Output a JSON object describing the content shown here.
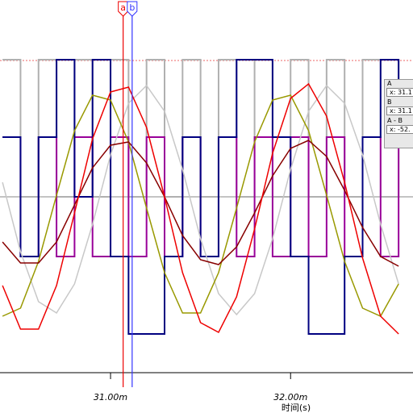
{
  "chart_data": {
    "type": "line",
    "x_label": "时间(s)",
    "x": [
      30.4,
      30.5,
      30.6,
      30.7,
      30.8,
      30.9,
      31.0,
      31.1,
      31.2,
      31.3,
      31.4,
      31.5,
      31.6,
      31.7,
      31.8,
      31.9,
      32.0,
      32.1,
      32.2,
      32.3,
      32.4,
      32.5,
      32.6
    ],
    "xlim": [
      30.386,
      32.68
    ],
    "ylim": [
      -1.09,
      1.22
    ],
    "xticks": [
      {
        "value": 31,
        "label": "31.00m"
      },
      {
        "value": 32,
        "label": "32.00m"
      }
    ],
    "series": [
      {
        "color": "#b0b0b0",
        "step": true,
        "values": [
          0.85,
          0,
          0.85,
          0,
          0.85,
          0,
          0.85,
          0,
          0.85,
          0,
          0.85,
          0,
          0.85,
          0,
          0.85,
          0,
          0.85,
          0,
          0.85,
          0,
          0.85,
          0,
          0.85
        ]
      },
      {
        "color": "#990099",
        "step": true,
        "values": [
          0.37,
          -0.37,
          0.37,
          -0.37,
          0.37,
          -0.37,
          0.37,
          -0.37,
          0.37,
          -0.37,
          0.37,
          -0.37,
          0.37,
          -0.37,
          0.37,
          -0.37,
          0.37,
          -0.37,
          0.37,
          -0.37,
          0.37,
          -0.37,
          0.37
        ]
      },
      {
        "color": "#000080",
        "step": true,
        "values": [
          0.37,
          -0.37,
          0.37,
          0.85,
          0,
          0.85,
          -0.37,
          -0.85,
          -0.85,
          -0.37,
          0.37,
          -0.37,
          0.37,
          0.85,
          0.85,
          0.37,
          -0.37,
          -0.85,
          -0.85,
          -0.37,
          0.37,
          0.85,
          0.37
        ]
      },
      {
        "color": "#c8c8c8",
        "values": [
          0.09,
          -0.34,
          -0.65,
          -0.72,
          -0.54,
          -0.17,
          0.26,
          0.58,
          0.69,
          0.53,
          0.17,
          -0.26,
          -0.6,
          -0.73,
          -0.6,
          -0.26,
          0.17,
          0.53,
          0.69,
          0.58,
          0.26,
          -0.17,
          -0.54
        ]
      },
      {
        "color": "#999900",
        "values": [
          -0.74,
          -0.69,
          -0.4,
          0.01,
          0.41,
          0.63,
          0.6,
          0.34,
          -0.07,
          -0.47,
          -0.72,
          -0.72,
          -0.47,
          -0.07,
          0.34,
          0.6,
          0.63,
          0.41,
          0.01,
          -0.4,
          -0.69,
          -0.74,
          -0.54
        ]
      },
      {
        "color": "#880000",
        "values": [
          -0.28,
          -0.41,
          -0.41,
          -0.28,
          -0.05,
          0.18,
          0.32,
          0.34,
          0.21,
          0,
          -0.24,
          -0.39,
          -0.42,
          -0.31,
          -0.1,
          0.13,
          0.3,
          0.35,
          0.25,
          0.04,
          -0.19,
          -0.37,
          -0.43
        ]
      },
      {
        "color": "#ee0000",
        "values": [
          -0.55,
          -0.82,
          -0.82,
          -0.55,
          -0.1,
          0.36,
          0.65,
          0.68,
          0.43,
          0,
          -0.47,
          -0.78,
          -0.84,
          -0.62,
          -0.2,
          0.27,
          0.61,
          0.7,
          0.5,
          0.09,
          -0.38,
          -0.74,
          -0.85
        ]
      }
    ],
    "cursors": [
      {
        "label": "a",
        "x": 31.07,
        "color": "#ee0000"
      },
      {
        "label": "b",
        "x": 31.12,
        "color": "#3333ff"
      }
    ]
  },
  "cursor_panel": {
    "a_title": "A",
    "a_x": "x: 31.1",
    "b_title": "B",
    "b_x": "x: 31.1",
    "diff_title": "A - B",
    "diff_x": "x: -52."
  }
}
